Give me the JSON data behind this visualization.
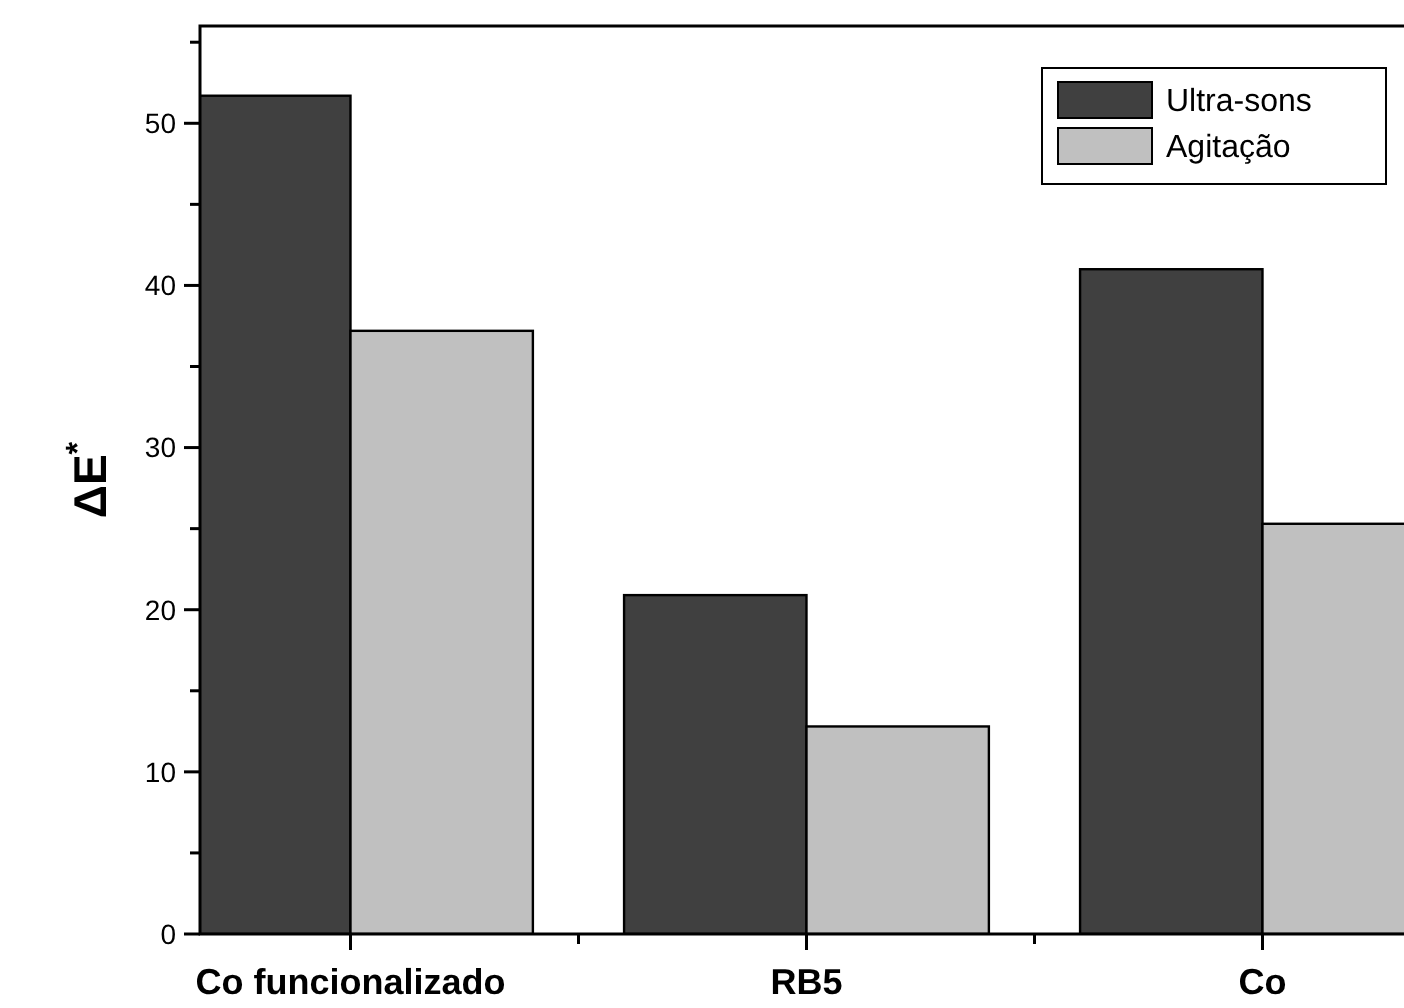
{
  "chart_data": {
    "type": "bar",
    "ylabel": "ΔE$^{*}$",
    "categories": [
      "Co funcionalizado",
      "RB5",
      "Co"
    ],
    "series": [
      {
        "name": "Ultra-sons",
        "color": "#404040",
        "values": [
          51.7,
          20.9,
          41.0
        ]
      },
      {
        "name": "Agitação",
        "color": "#c0c0c0",
        "values": [
          37.2,
          12.8,
          25.3
        ]
      }
    ],
    "ylim": [
      0,
      56
    ],
    "yticks": [
      0,
      {
        "value": 5,
        "label": null
      },
      10,
      {
        "value": 15,
        "label": null
      },
      20,
      {
        "value": 25,
        "label": null
      },
      30,
      {
        "value": 35,
        "label": null
      },
      40,
      {
        "value": 45,
        "label": null
      },
      50,
      {
        "value": 55,
        "label": null
      }
    ],
    "grid": false,
    "legend": "top right"
  }
}
